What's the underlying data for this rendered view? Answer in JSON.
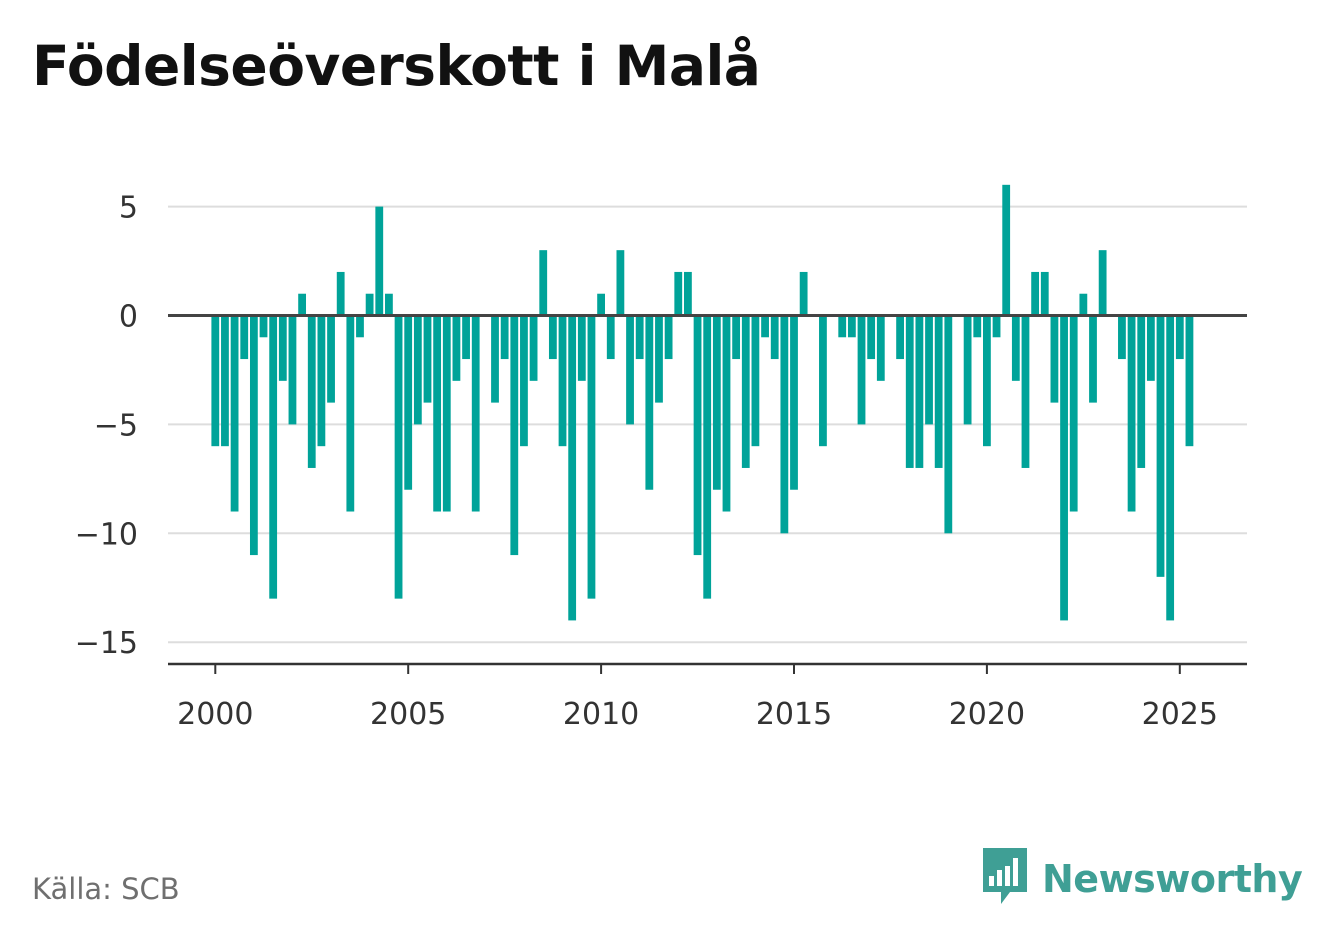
{
  "title": "Födelseöverskott i Malå",
  "source": "Källa: SCB",
  "brand": {
    "name": "Newsworthy",
    "icon": "newsworthy-logo-icon",
    "color": "#3f9f95"
  },
  "colors": {
    "bar": "#00a399",
    "grid": "#dddddd",
    "zero_line": "#444444",
    "axis": "#333333"
  },
  "chart_data": {
    "type": "bar",
    "title": "Födelseöverskott i Malå",
    "xlabel": "",
    "ylabel": "",
    "granularity": "quarter",
    "x_ticks": [
      2000,
      2005,
      2010,
      2015,
      2020,
      2025
    ],
    "y_ticks": [
      5,
      0,
      -5,
      -10,
      -15
    ],
    "y_tick_labels": [
      "5",
      "0",
      "−5",
      "−10",
      "−15"
    ],
    "ylim": [
      -16,
      6
    ],
    "xlim": [
      1998.75,
      2026.8
    ],
    "grid": true,
    "legend": "none",
    "x": [
      2000.0,
      2000.25,
      2000.5,
      2000.75,
      2001.0,
      2001.25,
      2001.5,
      2001.75,
      2002.0,
      2002.25,
      2002.5,
      2002.75,
      2003.0,
      2003.25,
      2003.5,
      2003.75,
      2004.0,
      2004.25,
      2004.5,
      2004.75,
      2005.0,
      2005.25,
      2005.5,
      2005.75,
      2006.0,
      2006.25,
      2006.5,
      2006.75,
      2007.0,
      2007.25,
      2007.5,
      2007.75,
      2008.0,
      2008.25,
      2008.5,
      2008.75,
      2009.0,
      2009.25,
      2009.5,
      2009.75,
      2010.0,
      2010.25,
      2010.5,
      2010.75,
      2011.0,
      2011.25,
      2011.5,
      2011.75,
      2012.0,
      2012.25,
      2012.5,
      2012.75,
      2013.0,
      2013.25,
      2013.5,
      2013.75,
      2014.0,
      2014.25,
      2014.5,
      2014.75,
      2015.0,
      2015.25,
      2015.5,
      2015.75,
      2016.0,
      2016.25,
      2016.5,
      2016.75,
      2017.0,
      2017.25,
      2017.5,
      2017.75,
      2018.0,
      2018.25,
      2018.5,
      2018.75,
      2019.0,
      2019.25,
      2019.5,
      2019.75,
      2020.0,
      2020.25,
      2020.5,
      2020.75,
      2021.0,
      2021.25,
      2021.5,
      2021.75,
      2022.0,
      2022.25,
      2022.5,
      2022.75,
      2023.0,
      2023.25,
      2023.5,
      2023.75,
      2024.0,
      2024.25,
      2024.5,
      2024.75,
      2025.0,
      2025.25
    ],
    "values": [
      -6,
      -6,
      -9,
      -2,
      -11,
      -1,
      -13,
      -3,
      -5,
      1,
      -7,
      -6,
      -4,
      2,
      -9,
      -1,
      1,
      5,
      1,
      -13,
      -8,
      -5,
      -4,
      -9,
      -9,
      -3,
      -2,
      -9,
      0,
      -4,
      -2,
      -11,
      -6,
      -3,
      3,
      -2,
      -6,
      -14,
      -3,
      -13,
      1,
      -2,
      3,
      -5,
      -2,
      -8,
      -4,
      -2,
      2,
      2,
      -11,
      -13,
      -8,
      -9,
      -2,
      -7,
      -6,
      -1,
      -2,
      -10,
      -8,
      2,
      0,
      -6,
      0,
      -1,
      -1,
      -5,
      -2,
      -3,
      0,
      -2,
      -7,
      -7,
      -5,
      -7,
      -10,
      0,
      -5,
      -1,
      -6,
      -1,
      6,
      -3,
      -7,
      2,
      2,
      -4,
      -14,
      -9,
      1,
      -4,
      3,
      0,
      -2,
      -9,
      -7,
      -3,
      -12,
      -14,
      -2,
      -6
    ]
  }
}
